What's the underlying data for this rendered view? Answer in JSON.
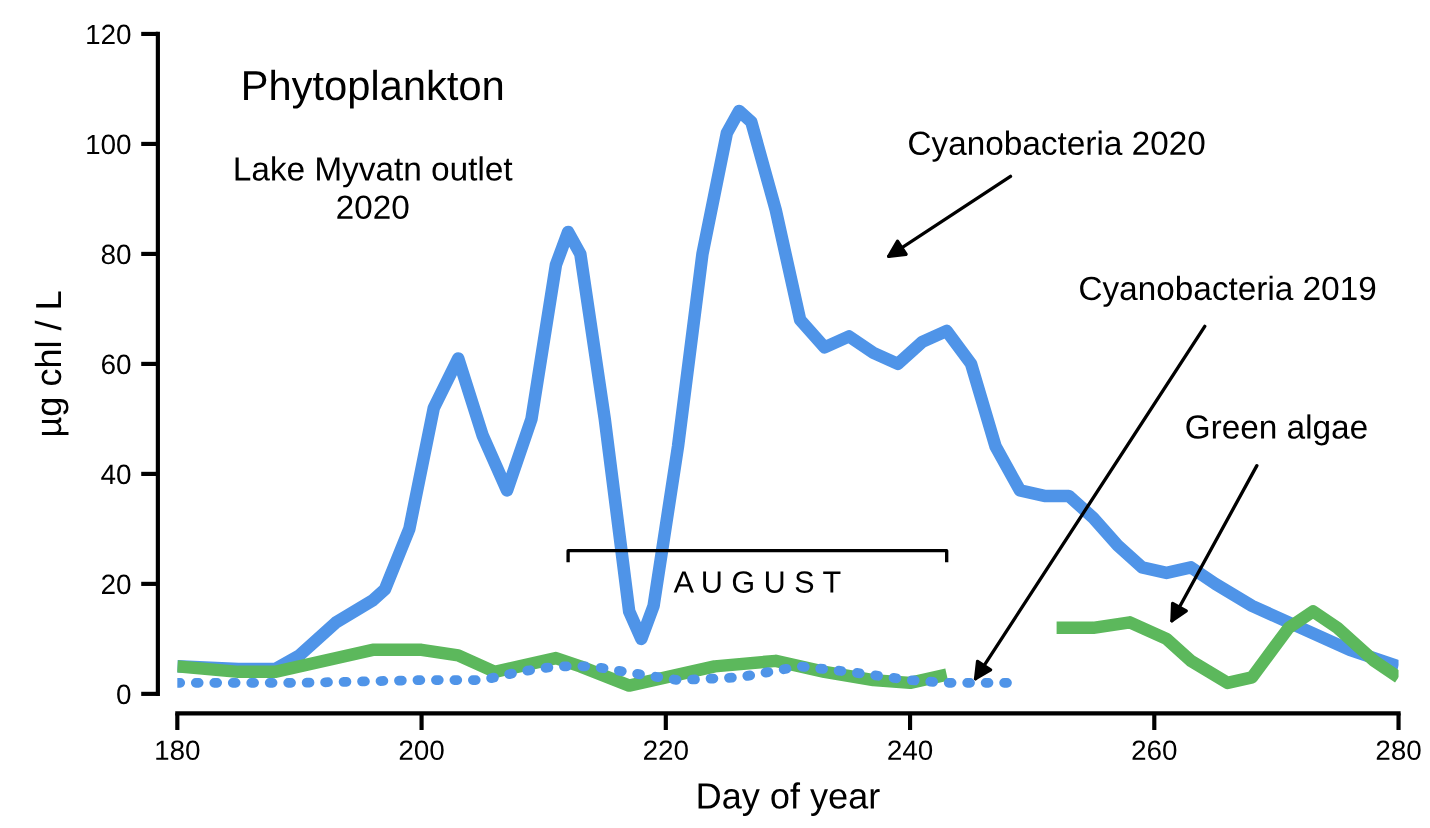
{
  "chart_data": {
    "type": "line",
    "title": "Phytoplankton",
    "subtitle": "Lake Myvatn outlet\n2020",
    "xlabel": "Day of year",
    "ylabel": "µg chl / L",
    "xlim": [
      180,
      280
    ],
    "xticks": [
      180,
      200,
      220,
      240,
      260,
      280
    ],
    "ylim": [
      0,
      120
    ],
    "yticks": [
      0,
      20,
      40,
      60,
      80,
      100,
      120
    ],
    "grid": false,
    "marker": "none",
    "series": [
      {
        "color": "#4f94e8",
        "line_style": "solid",
        "x": [
          180,
          185,
          188,
          190,
          193,
          196,
          197,
          199,
          201,
          203,
          205,
          207,
          209,
          211,
          212,
          213,
          215,
          217,
          218,
          219,
          221,
          223,
          225,
          226,
          227,
          229,
          231,
          233,
          235,
          237,
          239,
          241,
          243,
          245,
          247,
          249,
          251,
          253,
          255,
          257,
          259,
          261,
          263,
          265,
          268,
          272,
          276,
          280
        ],
        "values": [
          5,
          4.5,
          4.5,
          7,
          13,
          17,
          19,
          30,
          52,
          61,
          47,
          37,
          50,
          78,
          84,
          80,
          50,
          15,
          10,
          16,
          45,
          80,
          102,
          106,
          104,
          88,
          68,
          63,
          65,
          62,
          60,
          64,
          66,
          60,
          45,
          37,
          36,
          36,
          32,
          27,
          23,
          22,
          23,
          20,
          16,
          12,
          8,
          5
        ]
      },
      {
        "color": "#5cb85c",
        "line_style": "solid",
        "x": [
          180,
          185,
          188,
          192,
          196,
          200,
          203,
          206,
          208,
          211,
          213,
          217,
          220,
          224,
          229,
          233,
          237,
          240,
          243,
          248,
          252,
          255,
          258,
          261,
          263,
          266,
          268,
          271,
          273,
          275,
          278,
          280
        ],
        "values": [
          5,
          4,
          4,
          6,
          8,
          8,
          7,
          4,
          5,
          6.5,
          5,
          1.5,
          3,
          5,
          6,
          4,
          2.5,
          2,
          3.5,
          null,
          12,
          12,
          13,
          10,
          6,
          2,
          3,
          12,
          15,
          12,
          6,
          3
        ]
      },
      {
        "color": "#4f94e8",
        "line_style": "dotted",
        "x": [
          180,
          190,
          200,
          205,
          208,
          211,
          214,
          218,
          221,
          226,
          231,
          235,
          240,
          243,
          248
        ],
        "values": [
          2,
          2,
          2.5,
          2.5,
          4,
          5,
          5,
          3.5,
          2.5,
          3,
          5,
          4,
          2.5,
          2,
          2
        ]
      }
    ],
    "annotations": [
      "A U G U S T",
      "Cyanobacteria 2020",
      {
        "text": "Cyanobacteria 2019",
        "x": 245.2,
        "y": 2.2
      },
      {
        "text": "Green algae",
        "x": 261.3,
        "y": 12.7
      }
    ]
  }
}
